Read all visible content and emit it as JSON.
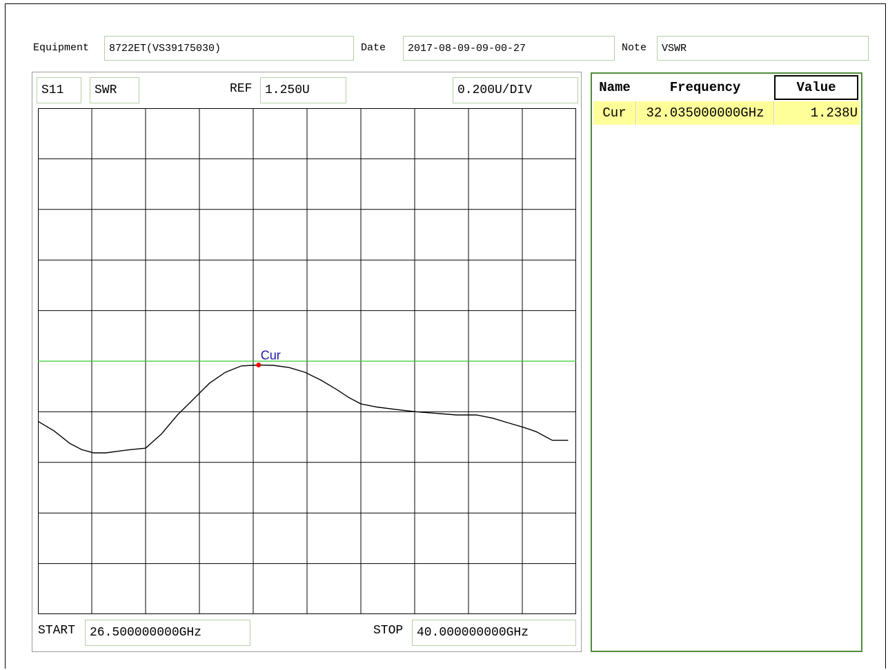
{
  "header": {
    "equipment_label": "Equipment",
    "equipment_value": "8722ET(VS39175030)",
    "date_label": "Date",
    "date_value": "2017-08-09-09-00-27",
    "note_label": "Note",
    "note_value": "VSWR"
  },
  "chart": {
    "param": "S11",
    "format": "SWR",
    "ref_label": "REF",
    "ref_value": "1.250U",
    "scale_value": "0.200U/DIV",
    "start_label": "START",
    "start_value": "26.500000000GHz",
    "stop_label": "STOP",
    "stop_value": "40.000000000GHz",
    "colors": {
      "trace": "#000000",
      "ref_line": "#33cc33",
      "marker": "#ff0000",
      "marker_label": "#1a1aa0"
    }
  },
  "markers_table": {
    "headers": {
      "name": "Name",
      "frequency": "Frequency",
      "value": "Value"
    },
    "rows": [
      {
        "name": "Cur",
        "frequency": "32.035000000GHz",
        "value": "1.238U"
      }
    ]
  },
  "chart_data": {
    "type": "line",
    "xlabel": "",
    "ylabel": "",
    "xlim": [
      26.5,
      40.0
    ],
    "ylim": [
      0.45,
      2.05
    ],
    "grid": true,
    "ref_level": 1.25,
    "series": [
      {
        "x": [
          26.5,
          26.9,
          27.3,
          27.6,
          27.9,
          28.2,
          28.5,
          28.8,
          29.2,
          29.6,
          30.0,
          30.4,
          30.8,
          31.2,
          31.6,
          32.035,
          32.4,
          32.8,
          33.2,
          33.6,
          34.0,
          34.3,
          34.6,
          35.0,
          35.5,
          36.0,
          36.5,
          37.0,
          37.5,
          37.9,
          38.3,
          38.7,
          39.0,
          39.4,
          39.8
        ],
        "y": [
          1.06,
          1.03,
          0.99,
          0.97,
          0.96,
          0.96,
          0.965,
          0.97,
          0.975,
          1.02,
          1.08,
          1.13,
          1.18,
          1.215,
          1.235,
          1.238,
          1.237,
          1.23,
          1.215,
          1.19,
          1.16,
          1.135,
          1.115,
          1.105,
          1.097,
          1.09,
          1.085,
          1.08,
          1.08,
          1.07,
          1.055,
          1.04,
          1.027,
          1.0,
          1.0
        ]
      }
    ],
    "markers": [
      {
        "name": "Cur",
        "x": 32.035,
        "y": 1.238
      }
    ]
  }
}
